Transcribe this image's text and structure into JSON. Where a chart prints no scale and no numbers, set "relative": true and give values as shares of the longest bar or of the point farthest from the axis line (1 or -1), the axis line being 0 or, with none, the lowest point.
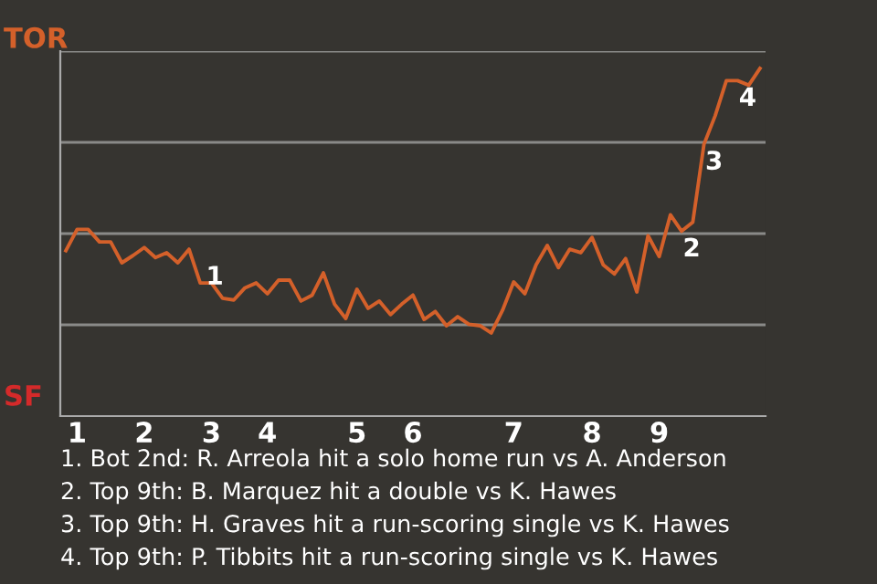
{
  "chart_data": {
    "type": "line",
    "relative": true,
    "categories": [
      null,
      "1",
      null,
      null,
      null,
      null,
      null,
      "2",
      null,
      null,
      null,
      null,
      null,
      "3",
      null,
      null,
      null,
      null,
      "4",
      null,
      null,
      null,
      null,
      null,
      null,
      null,
      "5",
      null,
      null,
      null,
      null,
      "6",
      null,
      null,
      null,
      null,
      null,
      null,
      null,
      null,
      "7",
      null,
      null,
      null,
      null,
      null,
      null,
      "8",
      null,
      null,
      null,
      null,
      null,
      "9",
      null,
      null,
      null,
      null,
      null,
      null,
      null,
      null,
      null
    ],
    "series": [
      {
        "color": "#d4602a",
        "values": [
          0.476,
          0.537,
          0.537,
          0.501,
          0.501,
          0.441,
          0.462,
          0.485,
          0.456,
          0.47,
          0.441,
          0.48,
          0.383,
          0.383,
          0.339,
          0.334,
          0.369,
          0.383,
          0.352,
          0.391,
          0.391,
          0.331,
          0.348,
          0.412,
          0.322,
          0.281,
          0.365,
          0.31,
          0.331,
          0.292,
          0.322,
          0.348,
          0.278,
          0.301,
          0.26,
          0.286,
          0.264,
          0.26,
          0.239,
          0.304,
          0.386,
          0.352,
          0.435,
          0.491,
          0.427,
          0.48,
          0.47,
          0.514,
          0.435,
          0.409,
          0.453,
          0.357,
          0.519,
          0.459,
          0.579,
          0.532,
          0.558,
          0.782,
          0.864,
          0.965,
          0.965,
          0.952,
          1
        ]
      }
    ],
    "grid": "y",
    "annotations": [
      "TOR",
      "SF",
      {
        "text": "1",
        "x": "3",
        "y": 0.399
      },
      {
        "text": "2",
        "y": 0.532
      },
      {
        "text": "3",
        "y": 0.782
      },
      {
        "text": "4",
        "y": 0.965
      },
      "1. Bot 2nd: R. Arreola hit a solo home run vs A. Anderson",
      "2. Top 9th: B. Marquez hit a double vs K. Hawes",
      "3. Top 9th: H. Graves hit a run-scoring single vs K. Hawes",
      "4. Top 9th: P. Tibbits hit a run-scoring single vs K. Hawes"
    ]
  }
}
